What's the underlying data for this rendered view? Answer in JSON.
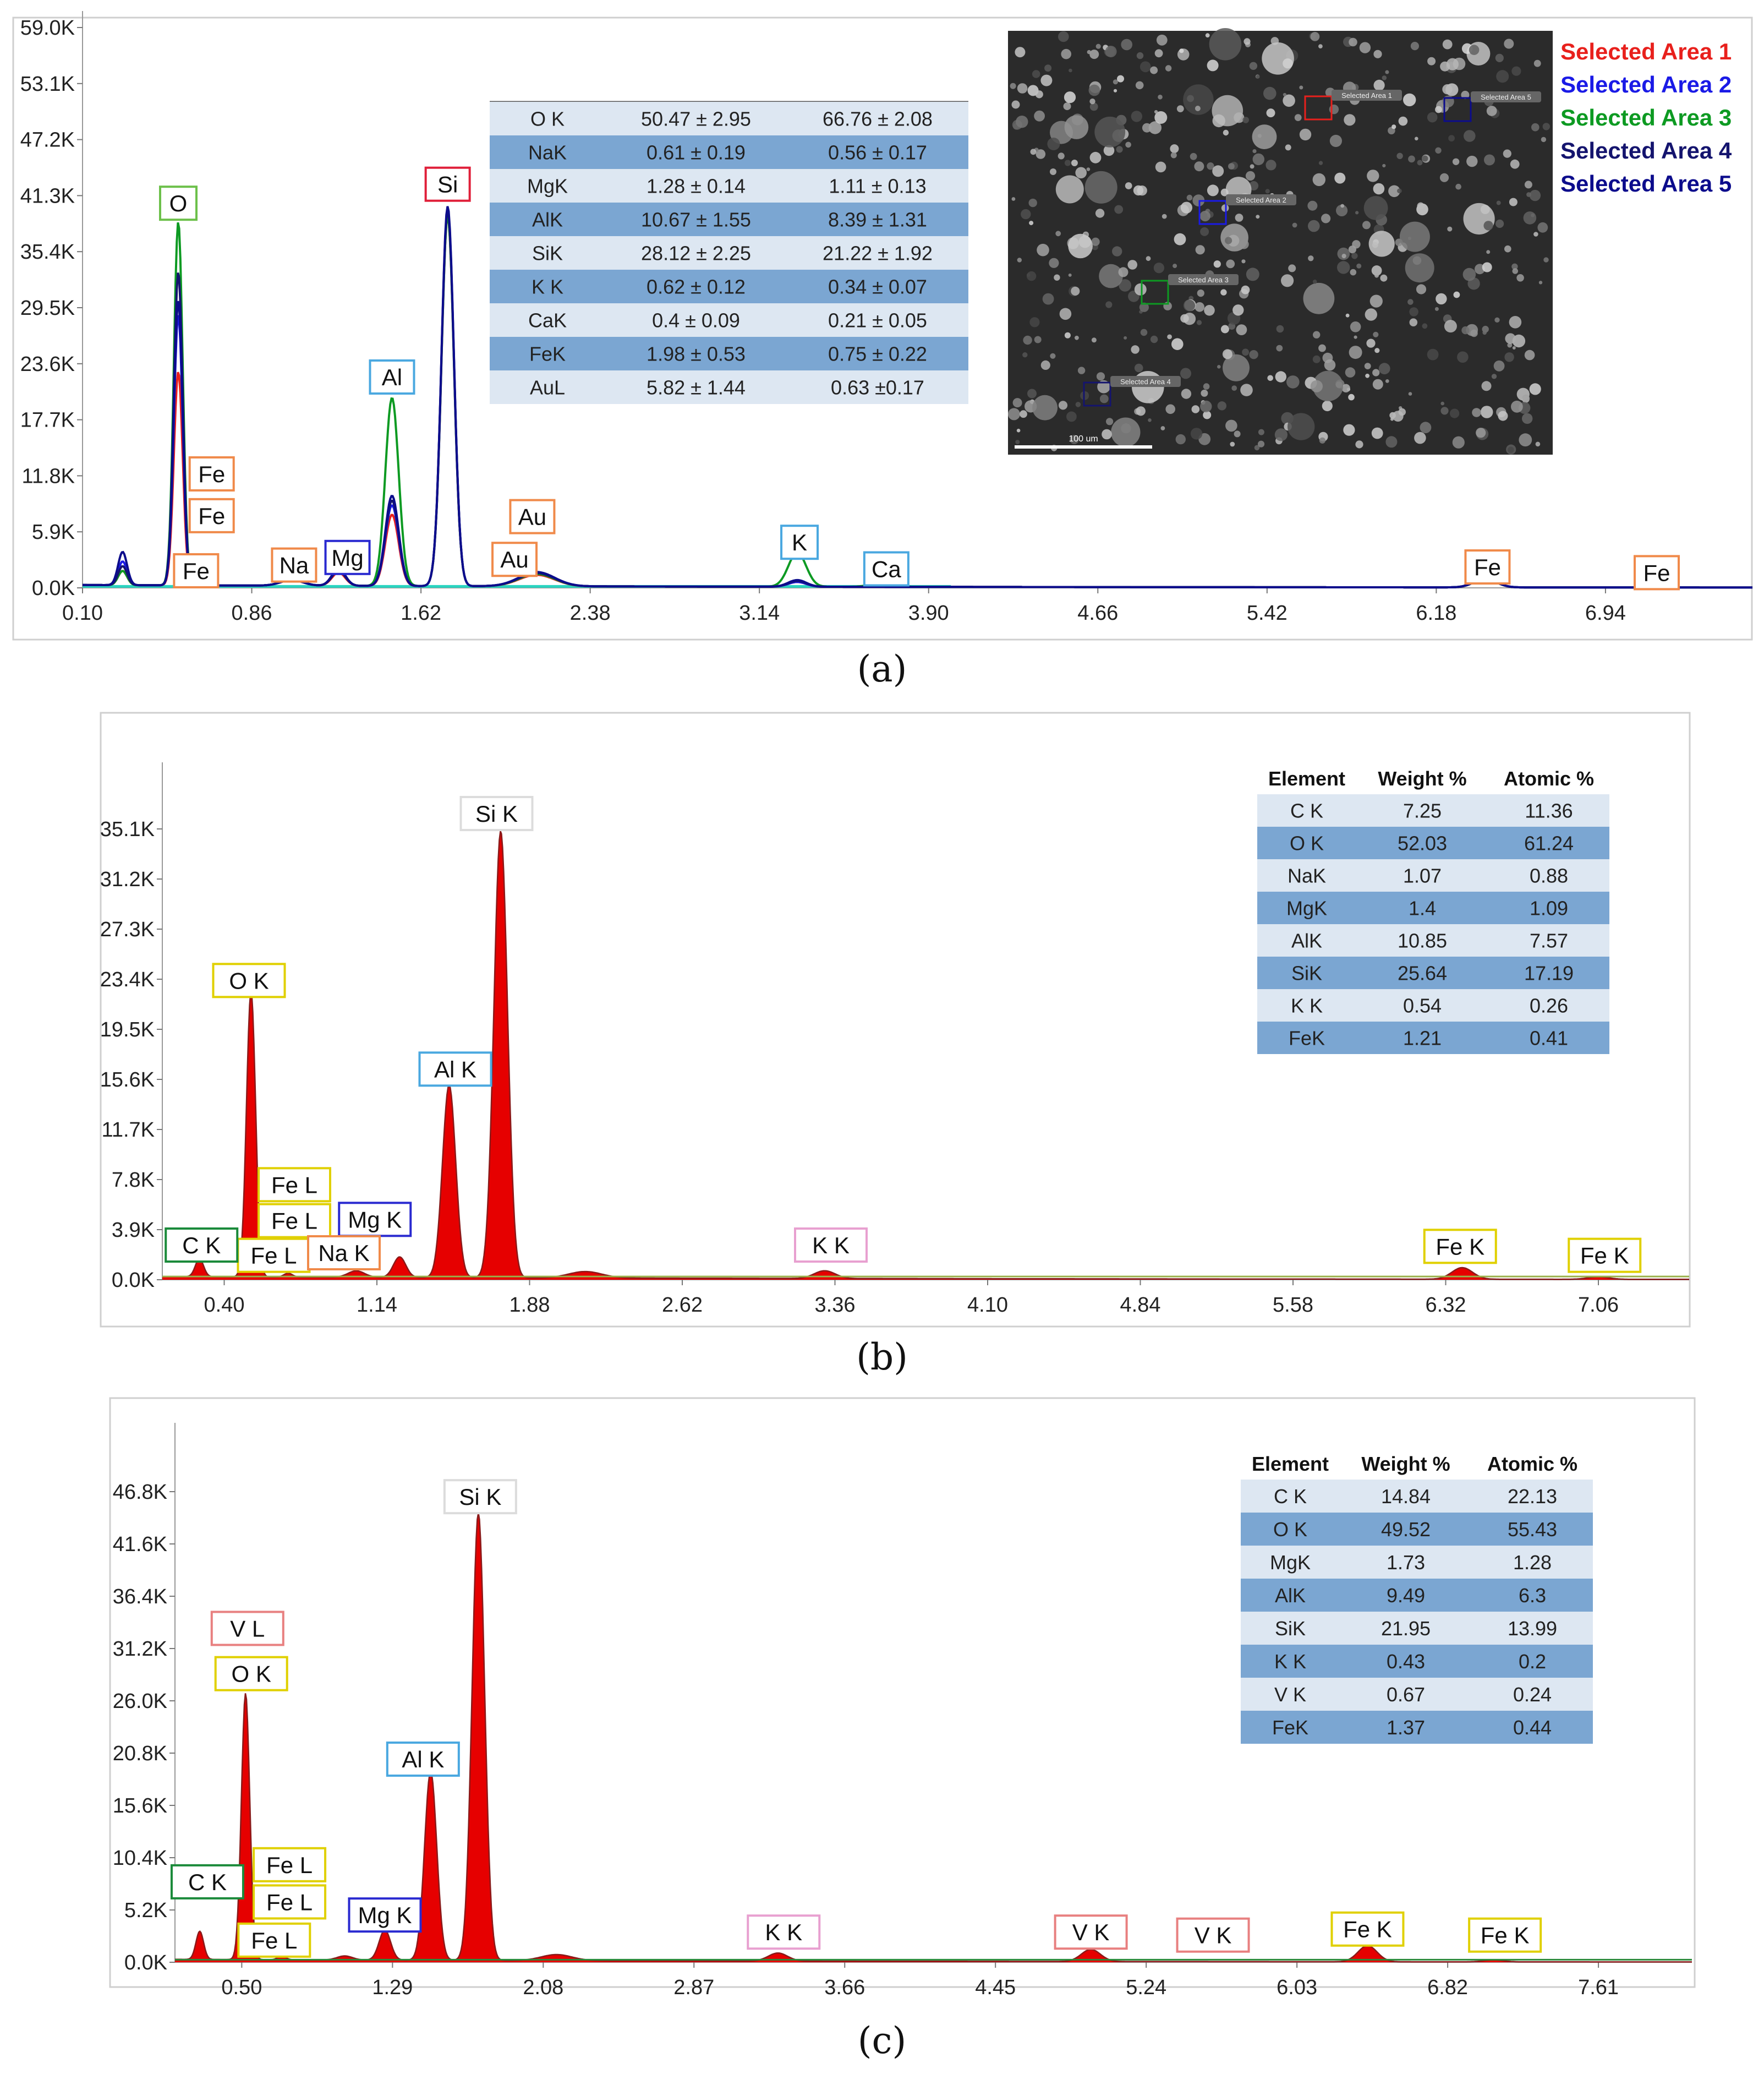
{
  "panels": [
    {
      "sublabel": "(a)",
      "colors": {
        "series": [
          "#e8201c",
          "#1a1ae6",
          "#0d9a22",
          "#14146e",
          "#0c0c8c"
        ],
        "baseline": "#2ad4c0"
      },
      "chart_data": {
        "type": "line",
        "xlim": [
          0.1,
          7.6
        ],
        "ylim": [
          0,
          59.0
        ],
        "xticks": [
          "0.10",
          "0.86",
          "1.62",
          "2.38",
          "3.14",
          "3.90",
          "4.66",
          "5.42",
          "6.18",
          "6.94"
        ],
        "yticks": [
          "0.0K",
          "5.9K",
          "11.8K",
          "17.7K",
          "23.6K",
          "29.5K",
          "35.4K",
          "41.3K",
          "47.2K",
          "53.1K",
          "59.0K"
        ],
        "background": 0.3,
        "series_peaks": [
          [
            [
              0.28,
              1.5,
              0.02
            ],
            [
              0.53,
              22.5,
              0.02
            ],
            [
              1.04,
              0.6,
              0.05
            ],
            [
              1.25,
              1.4,
              0.03
            ],
            [
              1.49,
              7.5,
              0.03
            ],
            [
              1.74,
              39.0,
              0.028
            ],
            [
              2.14,
              1.2,
              0.08
            ],
            [
              3.31,
              0.5,
              0.04
            ],
            [
              6.4,
              0.9,
              0.05
            ]
          ],
          [
            [
              0.28,
              2.5,
              0.02
            ],
            [
              0.53,
              28.5,
              0.02
            ],
            [
              1.04,
              0.6,
              0.05
            ],
            [
              1.25,
              1.6,
              0.03
            ],
            [
              1.49,
              8.5,
              0.03
            ],
            [
              1.74,
              39.5,
              0.028
            ],
            [
              2.14,
              1.4,
              0.08
            ],
            [
              3.31,
              0.5,
              0.04
            ],
            [
              6.4,
              0.9,
              0.05
            ]
          ],
          [
            [
              0.28,
              1.5,
              0.02
            ],
            [
              0.53,
              38.3,
              0.02
            ],
            [
              1.04,
              0.6,
              0.05
            ],
            [
              1.25,
              1.7,
              0.03
            ],
            [
              1.49,
              19.8,
              0.03
            ],
            [
              1.74,
              39.0,
              0.028
            ],
            [
              2.14,
              1.3,
              0.08
            ],
            [
              3.31,
              3.6,
              0.04
            ],
            [
              3.69,
              0.4,
              0.05
            ],
            [
              6.4,
              0.9,
              0.05
            ]
          ],
          [
            [
              0.28,
              2.0,
              0.02
            ],
            [
              0.53,
              33.0,
              0.02
            ],
            [
              1.04,
              0.6,
              0.05
            ],
            [
              1.25,
              1.6,
              0.03
            ],
            [
              1.49,
              9.0,
              0.03
            ],
            [
              1.74,
              39.6,
              0.028
            ],
            [
              2.14,
              1.4,
              0.08
            ],
            [
              3.31,
              0.6,
              0.04
            ],
            [
              6.4,
              0.9,
              0.05
            ]
          ],
          [
            [
              0.28,
              3.5,
              0.02
            ],
            [
              0.53,
              30.0,
              0.02
            ],
            [
              1.04,
              0.6,
              0.05
            ],
            [
              1.25,
              1.8,
              0.03
            ],
            [
              1.49,
              9.5,
              0.03
            ],
            [
              1.74,
              40.0,
              0.028
            ],
            [
              2.14,
              1.5,
              0.08
            ],
            [
              3.31,
              0.7,
              0.04
            ],
            [
              6.4,
              1.0,
              0.05
            ]
          ]
        ],
        "element_labels": [
          {
            "text": "O",
            "x": 0.53,
            "y": 40.5,
            "color": "#6cc04a"
          },
          {
            "text": "Si",
            "x": 1.74,
            "y": 42.5,
            "color": "#e0203a"
          },
          {
            "text": "Al",
            "x": 1.49,
            "y": 22.2,
            "color": "#4aa8e0"
          },
          {
            "text": "Fe",
            "x": 0.68,
            "y": 12.0,
            "color": "#f08a4a"
          },
          {
            "text": "Fe",
            "x": 0.68,
            "y": 7.6,
            "color": "#f08a4a"
          },
          {
            "text": "Fe",
            "x": 0.61,
            "y": 1.8,
            "color": "#f08a4a"
          },
          {
            "text": "Na",
            "x": 1.05,
            "y": 2.4,
            "color": "#f08a4a"
          },
          {
            "text": "Mg",
            "x": 1.29,
            "y": 3.2,
            "color": "#2a2ad0"
          },
          {
            "text": "Au",
            "x": 2.12,
            "y": 7.5,
            "color": "#f08a4a"
          },
          {
            "text": "Au",
            "x": 2.04,
            "y": 3.0,
            "color": "#f08a4a"
          },
          {
            "text": "K",
            "x": 3.32,
            "y": 4.8,
            "color": "#4aa8e0"
          },
          {
            "text": "Ca",
            "x": 3.71,
            "y": 2.0,
            "color": "#4aa8e0"
          },
          {
            "text": "Fe",
            "x": 6.41,
            "y": 2.2,
            "color": "#f08a4a"
          },
          {
            "text": "Fe",
            "x": 7.17,
            "y": 1.6,
            "color": "#f08a4a"
          }
        ]
      },
      "table": {
        "headers": [],
        "rows": [
          [
            "O K",
            "50.47 ± 2.95",
            "66.76 ± 2.08"
          ],
          [
            "NaK",
            "0.61 ± 0.19",
            "0.56 ± 0.17"
          ],
          [
            "MgK",
            "1.28 ± 0.14",
            "1.11 ± 0.13"
          ],
          [
            "AlK",
            "10.67 ± 1.55",
            "8.39 ± 1.31"
          ],
          [
            "SiK",
            "28.12 ± 2.25",
            "21.22 ± 1.92"
          ],
          [
            "K K",
            "0.62 ± 0.12",
            "0.34 ± 0.07"
          ],
          [
            "CaK",
            "0.4 ± 0.09",
            "0.21 ± 0.05"
          ],
          [
            "FeK",
            "1.98 ± 0.53",
            "0.75 ± 0.22"
          ],
          [
            "AuL",
            "5.82 ± 1.44",
            "0.63 ±0.17"
          ]
        ]
      },
      "sem_image": {
        "scale_label": "100 um",
        "areas": [
          "Selected Area 1",
          "Selected Area 2",
          "Selected Area 3",
          "Selected Area 4",
          "Selected Area 5"
        ]
      },
      "legend": [
        "Selected Area 1",
        "Selected Area 2",
        "Selected Area 3",
        "Selected Area 4",
        "Selected Area 5"
      ]
    },
    {
      "sublabel": "(b)",
      "colors": {
        "fill": "#e60000",
        "line": "#8a1a1a",
        "baseline": "#9ab04a"
      },
      "chart_data": {
        "type": "area",
        "xlim": [
          0.1,
          7.5
        ],
        "ylim": [
          0,
          39.0
        ],
        "xticks": [
          "0.40",
          "1.14",
          "1.88",
          "2.62",
          "3.36",
          "4.10",
          "4.84",
          "5.58",
          "6.32",
          "7.06"
        ],
        "yticks": [
          "0.0K",
          "3.9K",
          "7.8K",
          "11.7K",
          "15.6K",
          "19.5K",
          "23.4K",
          "27.3K",
          "31.2K",
          "35.1K"
        ],
        "background": 0.25,
        "peaks": [
          [
            0.28,
            1.4,
            0.02
          ],
          [
            0.53,
            22.3,
            0.022
          ],
          [
            0.71,
            0.3,
            0.02
          ],
          [
            1.04,
            0.5,
            0.04
          ],
          [
            1.25,
            1.6,
            0.03
          ],
          [
            1.49,
            15.0,
            0.032
          ],
          [
            1.74,
            34.8,
            0.033
          ],
          [
            2.15,
            0.5,
            0.08
          ],
          [
            3.31,
            0.6,
            0.05
          ],
          [
            6.4,
            0.9,
            0.05
          ],
          [
            7.06,
            0.2,
            0.05
          ]
        ],
        "element_labels": [
          {
            "text": "Si K",
            "x": 1.72,
            "y": 36.3,
            "color": "#dcdcdc"
          },
          {
            "text": "O  K",
            "x": 0.52,
            "y": 23.3,
            "color": "#e0d000"
          },
          {
            "text": "Al K",
            "x": 1.52,
            "y": 16.4,
            "color": "#4aa8e0"
          },
          {
            "text": "Fe L",
            "x": 0.74,
            "y": 7.4,
            "color": "#e0d000"
          },
          {
            "text": "Fe L",
            "x": 0.74,
            "y": 4.6,
            "color": "#e0d000"
          },
          {
            "text": "Fe L",
            "x": 0.64,
            "y": 1.9,
            "color": "#e0d000"
          },
          {
            "text": "Mg K",
            "x": 1.13,
            "y": 4.7,
            "color": "#2a2ad0"
          },
          {
            "text": "C  K",
            "x": 0.29,
            "y": 2.7,
            "color": "#1a8a3a"
          },
          {
            "text": "Na K",
            "x": 0.98,
            "y": 2.1,
            "color": "#f08a4a"
          },
          {
            "text": "K  K",
            "x": 3.34,
            "y": 2.7,
            "color": "#e8a0d0"
          },
          {
            "text": "Fe K",
            "x": 6.39,
            "y": 2.6,
            "color": "#e0d000"
          },
          {
            "text": "Fe K",
            "x": 7.09,
            "y": 1.9,
            "color": "#e0d000"
          }
        ]
      },
      "table": {
        "headers": [
          "Element",
          "Weight %",
          "Atomic %"
        ],
        "rows": [
          [
            "C K",
            "7.25",
            "11.36"
          ],
          [
            "O K",
            "52.03",
            "61.24"
          ],
          [
            "NaK",
            "1.07",
            "0.88"
          ],
          [
            "MgK",
            "1.4",
            "1.09"
          ],
          [
            "AlK",
            "10.85",
            "7.57"
          ],
          [
            "SiK",
            "25.64",
            "17.19"
          ],
          [
            "K K",
            "0.54",
            "0.26"
          ],
          [
            "FeK",
            "1.21",
            "0.41"
          ]
        ]
      }
    },
    {
      "sublabel": "(c)",
      "colors": {
        "fill": "#e60000",
        "line": "#8a1a1a",
        "baseline": "#2a8a3a"
      },
      "chart_data": {
        "type": "area",
        "xlim": [
          0.15,
          8.1
        ],
        "ylim": [
          0,
          52.0
        ],
        "xticks": [
          "0.50",
          "1.29",
          "2.08",
          "2.87",
          "3.66",
          "4.45",
          "5.24",
          "6.03",
          "6.82",
          "7.61"
        ],
        "yticks": [
          "0.0K",
          "5.2K",
          "10.4K",
          "15.6K",
          "20.8K",
          "26.0K",
          "31.2K",
          "36.4K",
          "41.6K",
          "46.8K"
        ],
        "background": 0.3,
        "peaks": [
          [
            0.28,
            2.8,
            0.02
          ],
          [
            0.52,
            26.5,
            0.022
          ],
          [
            0.71,
            0.4,
            0.02
          ],
          [
            1.04,
            0.4,
            0.04
          ],
          [
            1.25,
            3.0,
            0.03
          ],
          [
            1.49,
            18.8,
            0.032
          ],
          [
            1.74,
            44.5,
            0.033
          ],
          [
            2.15,
            0.6,
            0.08
          ],
          [
            3.31,
            0.8,
            0.05
          ],
          [
            4.95,
            1.2,
            0.05
          ],
          [
            6.4,
            1.6,
            0.05
          ],
          [
            7.06,
            0.2,
            0.05
          ]
        ],
        "element_labels": [
          {
            "text": "Si K",
            "x": 1.75,
            "y": 46.3,
            "color": "#dcdcdc"
          },
          {
            "text": "V  L",
            "x": 0.53,
            "y": 33.2,
            "color": "#e88080"
          },
          {
            "text": "O  K",
            "x": 0.55,
            "y": 28.7,
            "color": "#e0d000"
          },
          {
            "text": "Al K",
            "x": 1.45,
            "y": 20.2,
            "color": "#4aa8e0"
          },
          {
            "text": "Fe L",
            "x": 0.75,
            "y": 9.7,
            "color": "#e0d000"
          },
          {
            "text": "Fe L",
            "x": 0.75,
            "y": 6.0,
            "color": "#e0d000"
          },
          {
            "text": "Fe L",
            "x": 0.67,
            "y": 2.2,
            "color": "#e0d000"
          },
          {
            "text": "Mg K",
            "x": 1.25,
            "y": 4.7,
            "color": "#2a2ad0"
          },
          {
            "text": "C  K",
            "x": 0.32,
            "y": 8.0,
            "color": "#1a8a3a"
          },
          {
            "text": "K  K",
            "x": 3.34,
            "y": 3.0,
            "color": "#e8a0d0"
          },
          {
            "text": "V  K",
            "x": 4.95,
            "y": 3.0,
            "color": "#e88080"
          },
          {
            "text": "V  K",
            "x": 5.59,
            "y": 2.7,
            "color": "#e88080"
          },
          {
            "text": "Fe K",
            "x": 6.4,
            "y": 3.3,
            "color": "#e0d000"
          },
          {
            "text": "Fe K",
            "x": 7.12,
            "y": 2.7,
            "color": "#e0d000"
          }
        ]
      },
      "table": {
        "headers": [
          "Element",
          "Weight %",
          "Atomic %"
        ],
        "rows": [
          [
            "C K",
            "14.84",
            "22.13"
          ],
          [
            "O K",
            "49.52",
            "55.43"
          ],
          [
            "MgK",
            "1.73",
            "1.28"
          ],
          [
            "AlK",
            "9.49",
            "6.3"
          ],
          [
            "SiK",
            "21.95",
            "13.99"
          ],
          [
            "K K",
            "0.43",
            "0.2"
          ],
          [
            "V K",
            "0.67",
            "0.24"
          ],
          [
            "FeK",
            "1.37",
            "0.44"
          ]
        ]
      }
    }
  ]
}
